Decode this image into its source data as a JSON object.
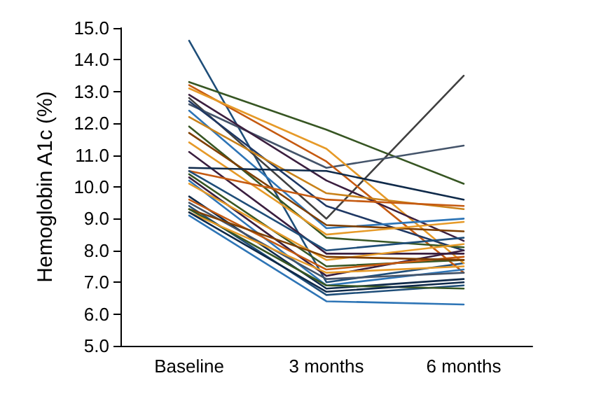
{
  "chart_data": {
    "type": "line",
    "ylabel": "Hemoglobin A1c (%)",
    "categories": [
      "Baseline",
      "3 months",
      "6 months"
    ],
    "ylim": [
      5,
      15
    ],
    "yticks": [
      {
        "value": 5,
        "label": "5.0"
      },
      {
        "value": 6,
        "label": "6.0"
      },
      {
        "value": 7,
        "label": "7.0"
      },
      {
        "value": 8,
        "label": "8.0"
      },
      {
        "value": 9,
        "label": "9.0"
      },
      {
        "value": 10,
        "label": "10.0"
      },
      {
        "value": 11,
        "label": "11.0"
      },
      {
        "value": 12,
        "label": "12.0"
      },
      {
        "value": 13,
        "label": "13.0"
      },
      {
        "value": 14,
        "label": "14.0"
      },
      {
        "value": 15,
        "label": "15.0"
      }
    ],
    "grid": false,
    "marker": "none",
    "line_style": "solid",
    "series": [
      {
        "color": "#1f4e79",
        "values": [
          14.6,
          7.0,
          7.6
        ]
      },
      {
        "color": "#375623",
        "values": [
          13.3,
          11.8,
          10.1
        ]
      },
      {
        "color": "#404040",
        "values": [
          12.8,
          9.0,
          13.5
        ]
      },
      {
        "color": "#44546a",
        "values": [
          12.6,
          10.6,
          11.3
        ]
      },
      {
        "color": "#c55a11",
        "values": [
          13.2,
          10.8,
          7.3
        ]
      },
      {
        "color": "#e69a28",
        "values": [
          13.1,
          11.2,
          7.6
        ]
      },
      {
        "color": "#3b1f3f",
        "values": [
          12.9,
          10.2,
          8.3
        ]
      },
      {
        "color": "#1f3864",
        "values": [
          12.7,
          9.4,
          8.0
        ]
      },
      {
        "color": "#2e75b6",
        "values": [
          12.4,
          8.7,
          9.0
        ]
      },
      {
        "color": "#c9821a",
        "values": [
          12.2,
          9.8,
          9.3
        ]
      },
      {
        "color": "#375623",
        "values": [
          11.9,
          8.4,
          8.1
        ]
      },
      {
        "color": "#7f3f00",
        "values": [
          11.7,
          8.8,
          8.6
        ]
      },
      {
        "color": "#e69a28",
        "values": [
          11.4,
          8.5,
          8.9
        ]
      },
      {
        "color": "#3b1f3f",
        "values": [
          11.1,
          7.9,
          7.9
        ]
      },
      {
        "color": "#0f2a4a",
        "values": [
          10.6,
          10.5,
          9.6
        ]
      },
      {
        "color": "#c55a11",
        "values": [
          10.5,
          9.6,
          9.4
        ]
      },
      {
        "color": "#1f4e79",
        "values": [
          10.5,
          8.0,
          8.4
        ]
      },
      {
        "color": "#375623",
        "values": [
          10.4,
          7.5,
          7.7
        ]
      },
      {
        "color": "#3b1f3f",
        "values": [
          10.3,
          7.2,
          8.0
        ]
      },
      {
        "color": "#2e75b6",
        "values": [
          10.2,
          6.9,
          7.4
        ]
      },
      {
        "color": "#e69a28",
        "values": [
          10.1,
          7.7,
          8.2
        ]
      },
      {
        "color": "#0f2a4a",
        "values": [
          9.7,
          6.8,
          7.1
        ]
      },
      {
        "color": "#c55a11",
        "values": [
          9.6,
          7.4,
          7.8
        ]
      },
      {
        "color": "#44546a",
        "values": [
          9.5,
          7.1,
          7.3
        ]
      },
      {
        "color": "#1f4e79",
        "values": [
          9.4,
          6.6,
          6.9
        ]
      },
      {
        "color": "#7f3f00",
        "values": [
          9.3,
          7.8,
          7.7
        ]
      },
      {
        "color": "#375623",
        "values": [
          9.3,
          6.9,
          6.8
        ]
      },
      {
        "color": "#e69a28",
        "values": [
          9.2,
          7.3,
          7.5
        ]
      },
      {
        "color": "#0f2a4a",
        "values": [
          9.2,
          6.7,
          7.0
        ]
      },
      {
        "color": "#2e75b6",
        "values": [
          9.1,
          6.4,
          6.3
        ]
      }
    ]
  }
}
